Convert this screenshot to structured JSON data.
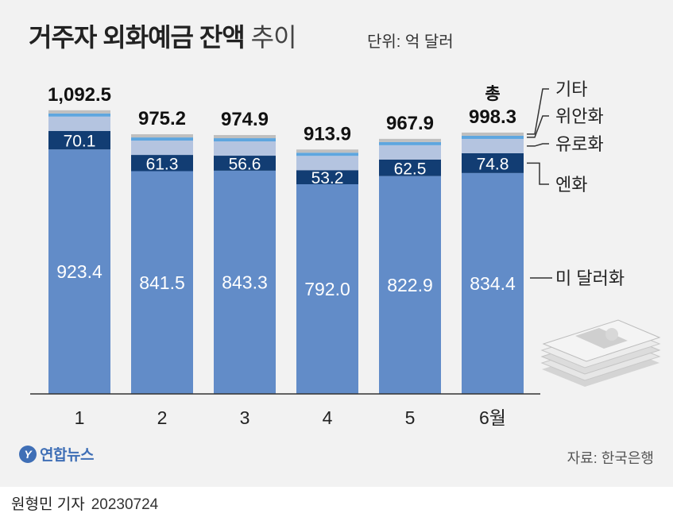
{
  "header": {
    "title": "거주자 외화예금 잔액",
    "title_light": "추이",
    "unit": "단위: 억 달러"
  },
  "footer": {
    "logo": "연합뉴스",
    "source": "자료: 한국은행",
    "author": "원형민 기자",
    "date": "20230724"
  },
  "chart_data": {
    "type": "bar",
    "stacked": true,
    "categories": [
      "1",
      "2",
      "3",
      "4",
      "5",
      "6월"
    ],
    "series": [
      {
        "name": "미 달러화",
        "values": [
          923.4,
          841.5,
          843.3,
          792.0,
          822.9,
          834.4
        ],
        "color": "#628cc8"
      },
      {
        "name": "엔화",
        "values": [
          70.1,
          61.3,
          56.6,
          53.2,
          62.5,
          74.8
        ],
        "color": "#123d73"
      },
      {
        "name": "유로화",
        "values": [
          null,
          null,
          null,
          null,
          null,
          null
        ],
        "color": "#b4c4e0"
      },
      {
        "name": "위안화",
        "values": [
          null,
          null,
          null,
          null,
          null,
          null
        ],
        "color": "#5ea6df"
      },
      {
        "name": "기타",
        "values": [
          null,
          null,
          null,
          null,
          null,
          null
        ],
        "color": "#bfbfbf"
      }
    ],
    "totals": [
      "1,092.5",
      "975.2",
      "974.9",
      "913.9",
      "967.9",
      "998.3"
    ],
    "total_prefix": "총",
    "ylim": [
      0,
      1200
    ]
  }
}
